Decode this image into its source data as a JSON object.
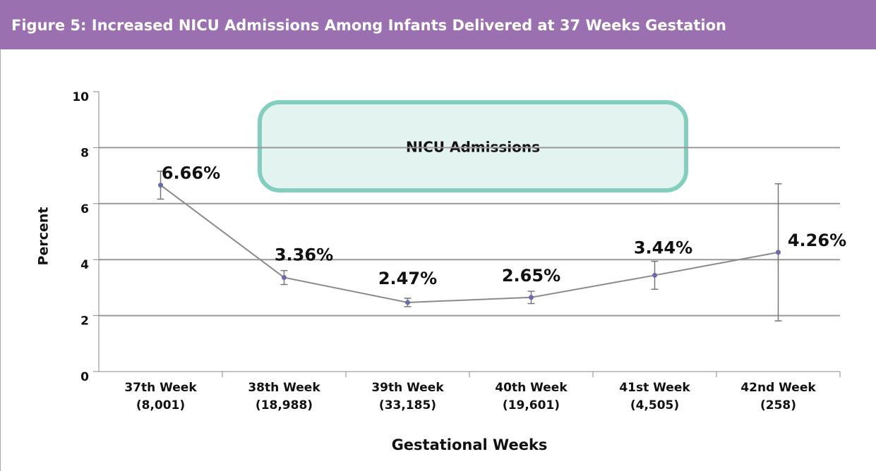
{
  "chart_data": {
    "type": "line",
    "title": "Figure 5: Increased NICU Admissions Among Infants Delivered at 37 Weeks Gestation",
    "x_label": "Gestational Weeks",
    "y_label": "Percent",
    "categories": [
      "37th Week",
      "38th Week",
      "39th Week",
      "40th Week",
      "41st Week",
      "42nd Week"
    ],
    "category_sublabels": [
      "(8,001)",
      "(18,988)",
      "(33,185)",
      "(19,601)",
      "(4,505)",
      "(258)"
    ],
    "series": [
      {
        "name": "NICU Admissions",
        "color": "#8a8a8a",
        "marker_color": "#6b6bab",
        "values": [
          6.66,
          3.36,
          2.47,
          2.65,
          3.44,
          4.26
        ],
        "value_labels": [
          "6.66%",
          "3.36%",
          "2.47%",
          "2.65%",
          "3.44%",
          "4.26%"
        ],
        "errors": [
          0.5,
          0.25,
          0.15,
          0.22,
          0.5,
          2.45
        ]
      }
    ],
    "ylim": [
      0,
      10
    ],
    "yticks": [
      0,
      2,
      4,
      6,
      8,
      10
    ],
    "grid": true
  }
}
